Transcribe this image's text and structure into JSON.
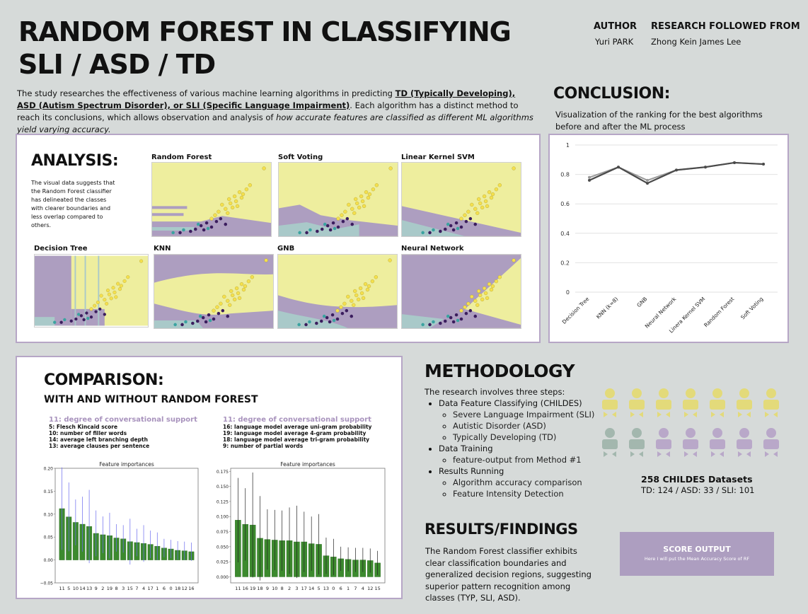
{
  "header": {
    "title_line1": "RANDOM FOREST IN CLASSIFYING",
    "title_line2": "SLI / ASD / TD",
    "author_label": "AUTHOR",
    "author_name": "Yuri PARK",
    "research_label": "RESEARCH  FOLLOWED FROM",
    "research_name": "Zhong Kein James Lee"
  },
  "intro": {
    "p1": "The study researches the effectiveness of various machine learning algorithms in predicting ",
    "td": "TD (Typically Developing), ASD (Autism Spectrum Disorder), or SLI (Specific Language Impairment)",
    "p2": ". Each algorithm has a distinct method to reach its conclusions, which allows observation and analysis of ",
    "p3": "how accurate features are classified as different ML algorithms yield varying accuracy."
  },
  "analysis": {
    "title": "ANALYSIS:",
    "text": "The visual data suggests that the Random Forest classifier has delineated the classes with clearer boundaries and less overlap compared to others.",
    "plots": [
      "Random Forest",
      "Soft Voting",
      "Linear Kernel SVM",
      "Decision Tree",
      "KNN",
      "GNB",
      "Neural Network"
    ]
  },
  "conclusion": {
    "title": "CONCLUSION:",
    "subtitle": "Visualization of the ranking for the best algorithms before and after the ML process"
  },
  "comparison": {
    "title": "COMPARISON:",
    "subtitle": "WITH AND WITHOUT RANDOM FOREST",
    "left_heading": "11: degree of conversational support",
    "left_items": [
      "5: Flesch Kincaid score",
      "10: number of filler words",
      "14: average left branching depth",
      "13: average clauses per sentence"
    ],
    "right_heading": "11: degree of conversational support",
    "right_items": [
      "16: language model average uni-gram probability",
      "19: language model average 4-gram probability",
      "18: language model average tri-gram probability",
      "9: number of partial words"
    ]
  },
  "methodology": {
    "title": "METHODOLOGY",
    "intro": "The research involves three steps:",
    "step1": "Data Feature Classifying (CHILDES)",
    "step1_sub": [
      "Severe Language Impairment (SLI)",
      "Autistic Disorder (ASD)",
      "Typically Developing (TD)"
    ],
    "step2": "Data Training",
    "step2_sub": [
      "feature-output from Method #1"
    ],
    "step3": "Results Running",
    "step3_sub": [
      "Algorithm accuracy comparison",
      "Feature Intensity Detection"
    ]
  },
  "datasets": {
    "title": "258 CHILDES Datasets",
    "breakdown": "TD: 124 / ASD: 33 / SLI: 101"
  },
  "results": {
    "title": "RESULTS/FINDINGS",
    "text": "The Random Forest classifier exhibits clear classification boundaries and generalized decision regions, suggesting superior pattern recognition among classes (TYP, SLI, ASD)."
  },
  "score": {
    "title": "SCORE OUTPUT",
    "text": "Here I will put the Mean Accuracy Score of RF"
  },
  "chart_data": [
    {
      "type": "line",
      "categories": [
        "Decision Tree",
        "KNN (k=8)",
        "GNB",
        "Neural Network",
        "Linera Kernel SVM",
        "Random Forest",
        "Soft Voting"
      ],
      "series": [
        {
          "values": [
            0.78,
            0.85,
            0.76,
            0.83,
            0.85,
            0.88,
            0.87
          ],
          "color": "#9a9a9a"
        },
        {
          "values": [
            0.76,
            0.85,
            0.74,
            0.83,
            0.85,
            0.88,
            0.87
          ],
          "color": "#4a4a4a"
        }
      ],
      "ylim": [
        0,
        1
      ],
      "yticks": [
        "0",
        "0.2",
        "0.4",
        "0.6",
        "0.8",
        "1"
      ]
    },
    {
      "type": "bar",
      "title": "Feature importances",
      "categories": [
        "11",
        "5",
        "10",
        "14",
        "13",
        "9",
        "2",
        "19",
        "8",
        "3",
        "15",
        "7",
        "4",
        "17",
        "1",
        "6",
        "0",
        "18",
        "12",
        "16"
      ],
      "values": [
        0.112,
        0.094,
        0.082,
        0.078,
        0.073,
        0.058,
        0.055,
        0.053,
        0.048,
        0.046,
        0.04,
        0.038,
        0.036,
        0.034,
        0.03,
        0.026,
        0.024,
        0.021,
        0.02,
        0.018
      ],
      "errors": [
        0.09,
        0.075,
        0.05,
        0.06,
        0.08,
        0.05,
        0.04,
        0.05,
        0.03,
        0.03,
        0.05,
        0.03,
        0.04,
        0.03,
        0.03,
        0.02,
        0.02,
        0.02,
        0.02,
        0.02
      ],
      "ylim": [
        -0.05,
        0.2
      ],
      "yticks": [
        "−0.05",
        "0.00",
        "0.05",
        "0.10",
        "0.15",
        "0.20"
      ]
    },
    {
      "type": "bar",
      "title": "Feature importances",
      "categories": [
        "11",
        "16",
        "19",
        "18",
        "9",
        "10",
        "8",
        "2",
        "3",
        "17",
        "14",
        "5",
        "13",
        "0",
        "6",
        "1",
        "7",
        "4",
        "12",
        "15"
      ],
      "values": [
        0.094,
        0.087,
        0.086,
        0.064,
        0.062,
        0.061,
        0.06,
        0.06,
        0.058,
        0.058,
        0.055,
        0.054,
        0.035,
        0.033,
        0.03,
        0.029,
        0.028,
        0.028,
        0.027,
        0.023
      ],
      "errors": [
        0.07,
        0.06,
        0.087,
        0.07,
        0.05,
        0.05,
        0.05,
        0.055,
        0.06,
        0.05,
        0.045,
        0.05,
        0.03,
        0.03,
        0.02,
        0.02,
        0.02,
        0.02,
        0.02,
        0.02
      ],
      "ylim": [
        -0.01,
        0.18
      ],
      "yticks": [
        "0.000",
        "0.025",
        "0.050",
        "0.075",
        "0.100",
        "0.125",
        "0.150",
        "0.175"
      ]
    }
  ]
}
